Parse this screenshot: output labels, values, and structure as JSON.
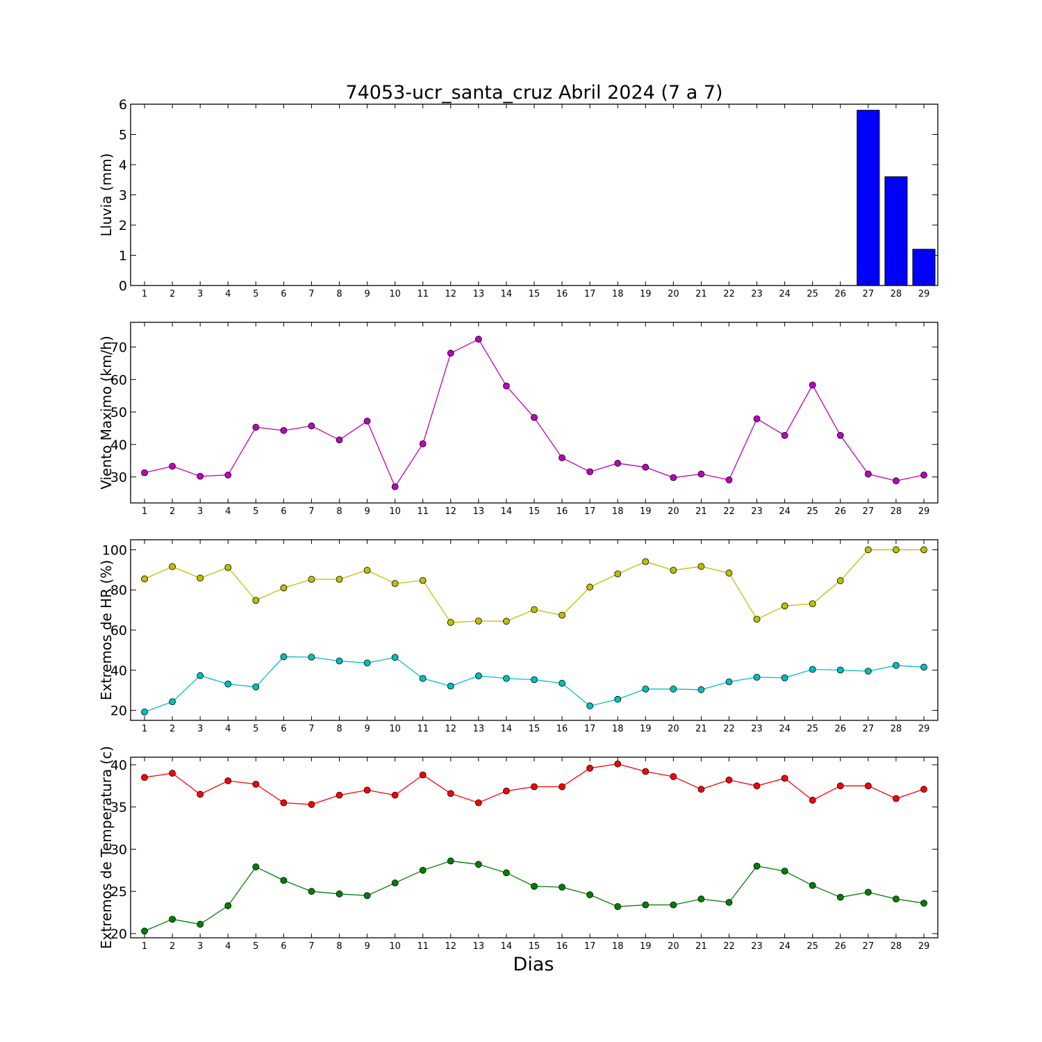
{
  "figure": {
    "title": "74053-ucr_santa_cruz Abril 2024  (7 a 7)",
    "xlabel": "Dias"
  },
  "chart_data": [
    {
      "type": "bar",
      "ylabel": "Lluvia (mm)",
      "ylim": [
        0,
        6
      ],
      "yticks": [
        0,
        1,
        2,
        3,
        4,
        5,
        6
      ],
      "grid": false,
      "categories": [
        1,
        2,
        3,
        4,
        5,
        6,
        7,
        8,
        9,
        10,
        11,
        12,
        13,
        14,
        15,
        16,
        17,
        18,
        19,
        20,
        21,
        22,
        23,
        24,
        25,
        26,
        27,
        28,
        29
      ],
      "series": [
        {
          "color": "#0000ff",
          "values": [
            0,
            0,
            0,
            0,
            0,
            0,
            0,
            0,
            0,
            0,
            0,
            0,
            0,
            0,
            0,
            0,
            0,
            0,
            0,
            0,
            0,
            0,
            0,
            0,
            0,
            0,
            5.8,
            3.6,
            1.2
          ]
        }
      ]
    },
    {
      "type": "line",
      "ylabel": "Viento Maximo (km/h)",
      "ylim": [
        22,
        77.6
      ],
      "yticks": [
        30,
        40,
        50,
        60,
        70
      ],
      "grid": false,
      "categories": [
        1,
        2,
        3,
        4,
        5,
        6,
        7,
        8,
        9,
        10,
        11,
        12,
        13,
        14,
        15,
        16,
        17,
        18,
        19,
        20,
        21,
        22,
        23,
        24,
        25,
        26,
        27,
        28,
        29
      ],
      "series": [
        {
          "color": "#bf00bf",
          "values": [
            31.3,
            33.3,
            30.2,
            30.6,
            45.3,
            44.3,
            45.7,
            41.4,
            47.2,
            27.0,
            40.2,
            68.1,
            72.4,
            58.0,
            48.3,
            35.9,
            31.6,
            34.2,
            33.0,
            29.8,
            30.9,
            29.1,
            47.9,
            42.8,
            58.3,
            42.8,
            30.9,
            28.8,
            30.6
          ]
        }
      ]
    },
    {
      "type": "line",
      "ylabel": "Extremos de HR (%)",
      "ylim": [
        15,
        105
      ],
      "yticks": [
        20,
        40,
        60,
        80,
        100
      ],
      "grid": false,
      "categories": [
        1,
        2,
        3,
        4,
        5,
        6,
        7,
        8,
        9,
        10,
        11,
        12,
        13,
        14,
        15,
        16,
        17,
        18,
        19,
        20,
        21,
        22,
        23,
        24,
        25,
        26,
        27,
        28,
        29
      ],
      "series": [
        {
          "color": "#bfbf00",
          "values": [
            85.5,
            91.6,
            85.9,
            91.2,
            74.8,
            81.0,
            85.3,
            85.3,
            89.8,
            83.2,
            84.7,
            63.8,
            64.5,
            64.4,
            70.2,
            67.4,
            81.4,
            88.0,
            94.1,
            89.8,
            91.7,
            88.4,
            65.4,
            72.0,
            73.1,
            84.6,
            100,
            100,
            100
          ]
        },
        {
          "color": "#00bfbf",
          "values": [
            19.2,
            24.3,
            37.3,
            33.1,
            31.7,
            46.7,
            46.5,
            44.6,
            43.6,
            46.4,
            35.9,
            32.1,
            37.2,
            35.9,
            35.3,
            33.5,
            22.2,
            25.5,
            30.6,
            30.6,
            30.3,
            34.2,
            36.5,
            36.2,
            40.4,
            40.1,
            39.5,
            42.4,
            41.5
          ]
        }
      ]
    },
    {
      "type": "line",
      "ylabel": "Extremos de Temperatura (c)",
      "ylim": [
        19.5,
        40.9
      ],
      "yticks": [
        20,
        25,
        30,
        35,
        40
      ],
      "grid": false,
      "categories": [
        1,
        2,
        3,
        4,
        5,
        6,
        7,
        8,
        9,
        10,
        11,
        12,
        13,
        14,
        15,
        16,
        17,
        18,
        19,
        20,
        21,
        22,
        23,
        24,
        25,
        26,
        27,
        28,
        29
      ],
      "series": [
        {
          "color": "#ff0000",
          "values": [
            38.5,
            39.0,
            36.5,
            38.1,
            37.7,
            35.5,
            35.3,
            36.4,
            37.0,
            36.4,
            38.8,
            36.6,
            35.5,
            36.9,
            37.4,
            37.4,
            39.6,
            40.1,
            39.2,
            38.6,
            37.1,
            38.2,
            37.5,
            38.4,
            35.8,
            37.5,
            37.5,
            36.0,
            37.1
          ]
        },
        {
          "color": "#008000",
          "values": [
            20.3,
            21.7,
            21.1,
            23.3,
            27.9,
            26.3,
            25.0,
            24.7,
            24.5,
            26.0,
            27.5,
            28.6,
            28.2,
            27.2,
            25.6,
            25.5,
            24.6,
            23.2,
            23.4,
            23.4,
            24.1,
            23.7,
            28.0,
            27.4,
            25.7,
            24.3,
            24.9,
            24.1,
            23.6
          ]
        }
      ]
    }
  ]
}
